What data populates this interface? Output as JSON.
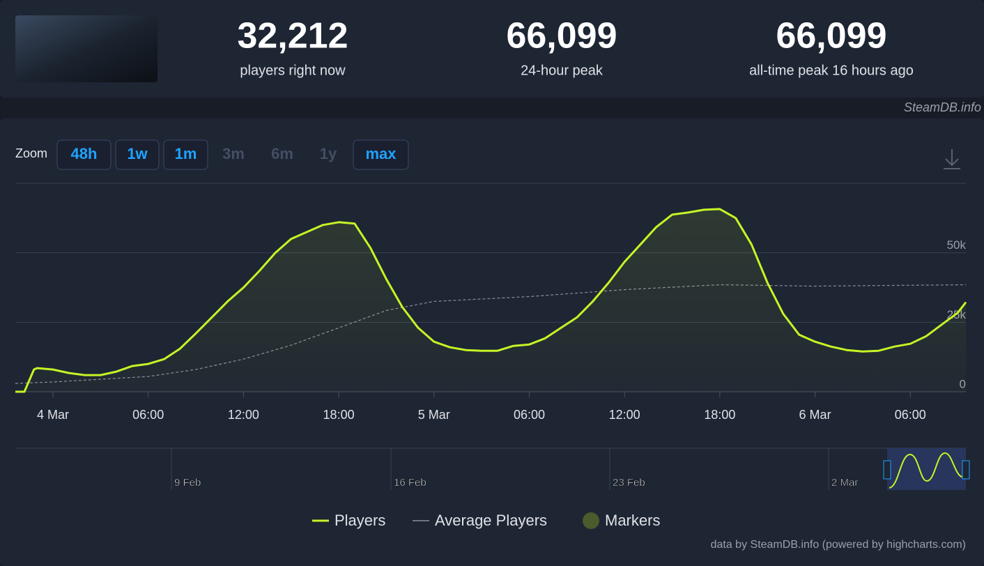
{
  "header": {
    "stats": [
      {
        "value": "32,212",
        "label": "players right now"
      },
      {
        "value": "66,099",
        "label": "24-hour peak"
      },
      {
        "value": "66,099",
        "label": "all-time peak 16 hours ago"
      }
    ]
  },
  "brand": "SteamDB.info",
  "zoom": {
    "label": "Zoom",
    "buttons": [
      {
        "text": "48h",
        "enabled": true
      },
      {
        "text": "1w",
        "enabled": true
      },
      {
        "text": "1m",
        "enabled": true
      },
      {
        "text": "3m",
        "enabled": false
      },
      {
        "text": "6m",
        "enabled": false
      },
      {
        "text": "1y",
        "enabled": false
      },
      {
        "text": "max",
        "enabled": true
      }
    ]
  },
  "chart_data": {
    "type": "line",
    "xlim": [
      -2.37,
      57.5
    ],
    "xticks": [
      {
        "value": 0,
        "label": "4 Mar"
      },
      {
        "value": 6,
        "label": "06:00"
      },
      {
        "value": 12,
        "label": "12:00"
      },
      {
        "value": 18,
        "label": "18:00"
      },
      {
        "value": 24,
        "label": "5 Mar"
      },
      {
        "value": 30,
        "label": "06:00"
      },
      {
        "value": 36,
        "label": "12:00"
      },
      {
        "value": 42,
        "label": "18:00"
      },
      {
        "value": 48,
        "label": "6 Mar"
      },
      {
        "value": 54,
        "label": "06:00"
      }
    ],
    "ylim": [
      0,
      75000
    ],
    "yticks": [
      0,
      {
        "value": 25000,
        "label": "25k"
      },
      {
        "value": 50000,
        "label": "50k"
      }
    ],
    "series": [
      {
        "name": "Players",
        "color": "#c6f425",
        "x": [
          -2.37,
          -1.8,
          -1.2,
          -1,
          0,
          1,
          2,
          3,
          4,
          5,
          6,
          7,
          8,
          9,
          10,
          11,
          12,
          13,
          14,
          15,
          16,
          17,
          18,
          19,
          20,
          21,
          22,
          23,
          24,
          25,
          26,
          27,
          28,
          29,
          30,
          31,
          32,
          33,
          34,
          35,
          36,
          37,
          38,
          39,
          40,
          41,
          42,
          43,
          44,
          45,
          46,
          47,
          48,
          49,
          50,
          51,
          52,
          53,
          54,
          55,
          56,
          57,
          57.5
        ],
        "values": [
          0,
          0,
          8000,
          8500,
          8000,
          6750,
          6000,
          6000,
          7250,
          9250,
          10000,
          11750,
          15500,
          21000,
          26750,
          32500,
          37500,
          43500,
          50000,
          55000,
          57500,
          60000,
          61000,
          60500,
          51750,
          40500,
          30500,
          23000,
          18000,
          16000,
          15000,
          14750,
          14750,
          16500,
          17000,
          19250,
          23000,
          26750,
          32500,
          39250,
          46750,
          53000,
          59250,
          63750,
          64500,
          65500,
          65750,
          62500,
          53000,
          39250,
          28000,
          20500,
          18000,
          16250,
          15000,
          14500,
          14750,
          16250,
          17250,
          20000,
          24250,
          28500,
          32212
        ]
      },
      {
        "name": "Average Players",
        "color": "#8a8f99",
        "dashed": true,
        "x": [
          -2.37,
          0,
          3,
          6,
          9,
          12,
          15,
          18,
          21,
          24,
          30,
          36,
          42,
          48,
          57.5
        ],
        "values": [
          3000,
          3500,
          4500,
          5500,
          8000,
          11750,
          16750,
          23000,
          29250,
          32500,
          34250,
          36750,
          38500,
          38000,
          38500
        ]
      }
    ],
    "markers": {
      "name": "Markers",
      "color": "#4b5b2b"
    },
    "grid": true
  },
  "navigator": {
    "labels": [
      "9 Feb",
      "16 Feb",
      "23 Feb",
      "2 Mar"
    ]
  },
  "credits": "data by SteamDB.info (powered by highcharts.com)"
}
